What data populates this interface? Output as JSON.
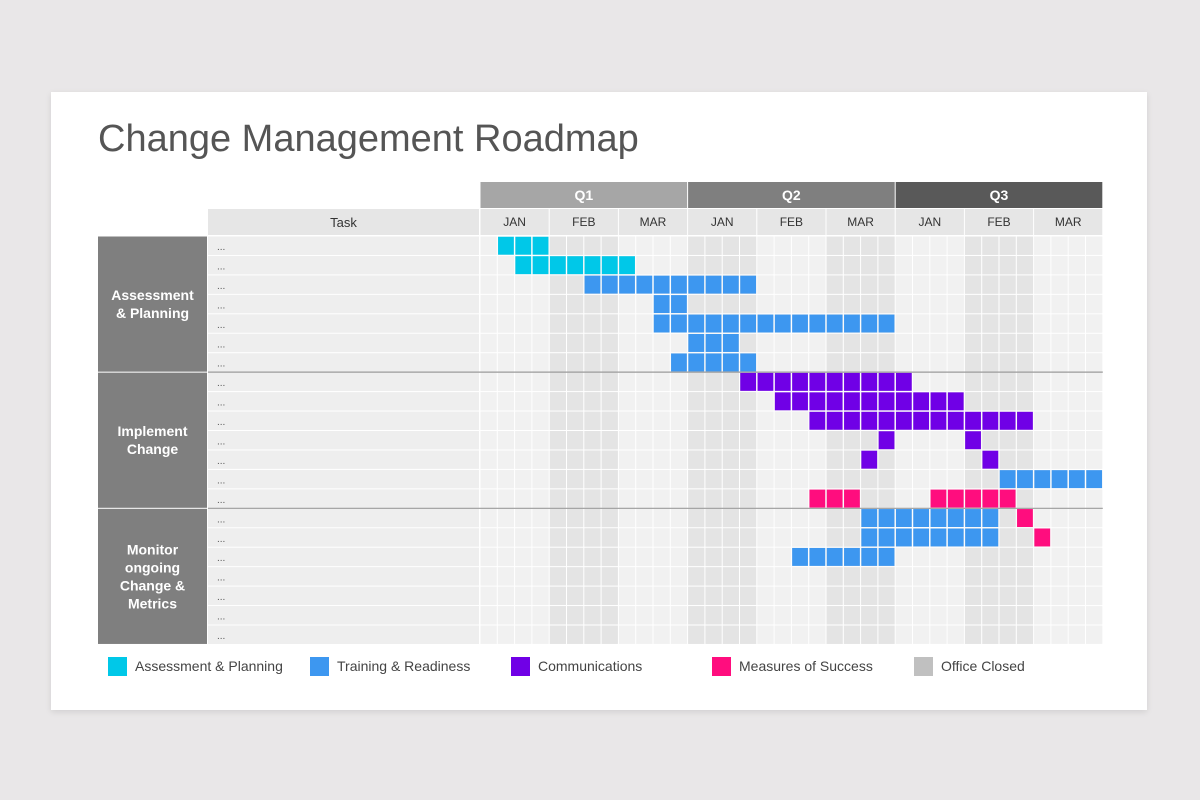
{
  "title": "Change Management Roadmap",
  "chart_data": {
    "type": "gantt",
    "task_header": "Task",
    "quarters": [
      {
        "label": "Q1",
        "color": "#a6a6a6"
      },
      {
        "label": "Q2",
        "color": "#7f7f7f"
      },
      {
        "label": "Q3",
        "color": "#595959"
      }
    ],
    "months": [
      "JAN",
      "FEB",
      "MAR",
      "JAN",
      "FEB",
      "MAR",
      "JAN",
      "FEB",
      "MAR"
    ],
    "weeks_per_month": 4,
    "office_closed_months": [
      1,
      3,
      5,
      7
    ],
    "groups": [
      {
        "label": "Assessment & Planning",
        "lines": [
          "Assessment",
          "& Planning"
        ],
        "rows": 7
      },
      {
        "label": "Implement Change",
        "lines": [
          "Implement",
          "Change"
        ],
        "rows": 7
      },
      {
        "label": "Monitor ongoing Change & Metrics",
        "lines": [
          "Monitor",
          "ongoing",
          "Change &",
          "Metrics"
        ],
        "rows": 7
      }
    ],
    "task_label": "...",
    "categories": {
      "assessment": {
        "name": "Assessment & Planning",
        "color": "#00c8e8"
      },
      "training": {
        "name": "Training & Readiness",
        "color": "#3d97f0"
      },
      "communications": {
        "name": "Communications",
        "color": "#7000e6"
      },
      "measures": {
        "name": "Measures of Success",
        "color": "#ff0d7e"
      },
      "closed": {
        "name": "Office Closed",
        "color": "#c0c0c0"
      }
    },
    "bars": [
      {
        "row": 0,
        "start": 1,
        "end": 3,
        "category": "assessment"
      },
      {
        "row": 1,
        "start": 2,
        "end": 8,
        "category": "assessment"
      },
      {
        "row": 2,
        "start": 6,
        "end": 15,
        "category": "training"
      },
      {
        "row": 3,
        "start": 10,
        "end": 11,
        "category": "training"
      },
      {
        "row": 4,
        "start": 10,
        "end": 23,
        "category": "training"
      },
      {
        "row": 5,
        "start": 12,
        "end": 14,
        "category": "training"
      },
      {
        "row": 6,
        "start": 11,
        "end": 15,
        "category": "training"
      },
      {
        "row": 7,
        "start": 15,
        "end": 24,
        "category": "communications"
      },
      {
        "row": 8,
        "start": 17,
        "end": 27,
        "category": "communications"
      },
      {
        "row": 9,
        "start": 19,
        "end": 31,
        "category": "communications"
      },
      {
        "row": 10,
        "start": 23,
        "end": 23,
        "category": "communications"
      },
      {
        "row": 10,
        "start": 28,
        "end": 28,
        "category": "communications"
      },
      {
        "row": 11,
        "start": 22,
        "end": 22,
        "category": "communications"
      },
      {
        "row": 11,
        "start": 29,
        "end": 29,
        "category": "communications"
      },
      {
        "row": 12,
        "start": 30,
        "end": 35,
        "category": "training"
      },
      {
        "row": 13,
        "start": 19,
        "end": 21,
        "category": "measures"
      },
      {
        "row": 13,
        "start": 26,
        "end": 30,
        "category": "measures"
      },
      {
        "row": 14,
        "start": 22,
        "end": 29,
        "category": "training"
      },
      {
        "row": 14,
        "start": 31,
        "end": 31,
        "category": "measures"
      },
      {
        "row": 15,
        "start": 22,
        "end": 29,
        "category": "training"
      },
      {
        "row": 15,
        "start": 32,
        "end": 32,
        "category": "measures"
      },
      {
        "row": 16,
        "start": 18,
        "end": 23,
        "category": "training"
      }
    ]
  },
  "legend": [
    {
      "key": "assessment",
      "label": "Assessment & Planning"
    },
    {
      "key": "training",
      "label": "Training & Readiness"
    },
    {
      "key": "communications",
      "label": "Communications"
    },
    {
      "key": "measures",
      "label": "Measures of Success"
    },
    {
      "key": "closed",
      "label": "Office Closed"
    }
  ]
}
